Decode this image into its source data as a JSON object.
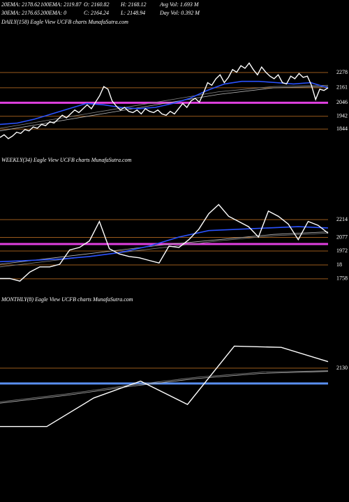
{
  "header": {
    "lines": [
      [
        "20EMA: 2178.62",
        "100EMA: 2119.87",
        "O: 2160.82",
        "H: 2168.12",
        "Avg Vol: 1.693 M"
      ],
      [
        "30EMA: 2176.65",
        "200EMA: 0",
        "C: 2164.24",
        "L: 2148.94",
        "Day Vol: 0.392 M"
      ]
    ]
  },
  "chart_data": [
    {
      "type": "line",
      "title": "DAILY(158) Eagle  View  UCFB charts MunafaSutra.com",
      "ylim": [
        1684,
        2620
      ],
      "yticks": [
        2278,
        2161,
        2046,
        1942,
        1844
      ],
      "hline": {
        "value": 2046,
        "color": "#e040e0"
      },
      "series": [
        {
          "color": "#888888",
          "values": [
            1850,
            1920,
            1990,
            2060,
            2130,
            2170,
            2180
          ]
        },
        {
          "color": "#bbbbbb",
          "values": [
            1830,
            1900,
            1970,
            2040,
            2110,
            2160,
            2170
          ]
        },
        {
          "color": "#2a52ff",
          "values": [
            1880,
            1890,
            1920,
            1960,
            2000,
            2040,
            2030,
            2010,
            2000,
            2010,
            2040,
            2080,
            2140,
            2190,
            2210,
            2210,
            2200,
            2190,
            2200,
            2160
          ]
        },
        {
          "color": "#ffffff",
          "values": [
            1780,
            1800,
            1770,
            1790,
            1820,
            1810,
            1840,
            1830,
            1860,
            1850,
            1880,
            1870,
            1900,
            1890,
            1920,
            1950,
            1930,
            1960,
            1990,
            1970,
            2000,
            2030,
            2000,
            2050,
            2100,
            2170,
            2150,
            2060,
            2020,
            1990,
            2010,
            1980,
            1970,
            1990,
            1960,
            2000,
            1980,
            1970,
            1990,
            1960,
            1950,
            1980,
            1960,
            2000,
            2040,
            2010,
            2060,
            2080,
            2050,
            2120,
            2200,
            2180,
            2230,
            2260,
            2200,
            2240,
            2300,
            2280,
            2330,
            2310,
            2350,
            2300,
            2260,
            2320,
            2280,
            2250,
            2230,
            2260,
            2200,
            2190,
            2250,
            2230,
            2270,
            2240,
            2250,
            2180,
            2070,
            2150,
            2140,
            2160
          ]
        }
      ]
    },
    {
      "type": "line",
      "title": "WEEKLY(34) Eagle  View  UCFB charts MunafaSutra.com",
      "ylim": [
        1650,
        2617
      ],
      "yticks": [
        2214,
        2077,
        1972,
        {
          "value": 1865,
          "label": "18"
        },
        1758
      ],
      "hline": {
        "value": 2026,
        "color": "#e040e0"
      },
      "series": [
        {
          "color": "#888888",
          "values": [
            1850,
            1900,
            1950,
            2000,
            2050,
            2090,
            2110
          ]
        },
        {
          "color": "#bbbbbb",
          "values": [
            1870,
            1920,
            1970,
            2020,
            2060,
            2100,
            2120
          ]
        },
        {
          "color": "#2a52ff",
          "values": [
            1890,
            1900,
            1910,
            1930,
            1960,
            2010,
            2080,
            2130,
            2140,
            2150,
            2160,
            2150
          ]
        },
        {
          "color": "#ffffff",
          "values": [
            1760,
            1760,
            1740,
            1810,
            1850,
            1850,
            1870,
            1980,
            2000,
            2050,
            2200,
            1990,
            1950,
            1930,
            1920,
            1900,
            1880,
            2010,
            2000,
            2060,
            2140,
            2260,
            2330,
            2240,
            2200,
            2160,
            2080,
            2280,
            2240,
            2180,
            2060,
            2200,
            2170,
            2110
          ]
        }
      ]
    },
    {
      "type": "line",
      "title": "MONTHLY(8) Eagle  View  UCFB charts MunafaSutra.com",
      "ylim": [
        1098,
        2603
      ],
      "yticks": [
        2130
      ],
      "hline": {
        "value": 2012,
        "color": "#5a8ff0"
      },
      "series": [
        {
          "color": "#888888",
          "values": [
            1870,
            1930,
            2000,
            2060,
            2100,
            2110
          ]
        },
        {
          "color": "#bbbbbb",
          "values": [
            1860,
            1920,
            1990,
            2050,
            2090,
            2105
          ]
        },
        {
          "color": "#ffffff",
          "values": [
            1680,
            1680,
            1900,
            2030,
            1850,
            2300,
            2290,
            2180
          ]
        }
      ]
    }
  ]
}
